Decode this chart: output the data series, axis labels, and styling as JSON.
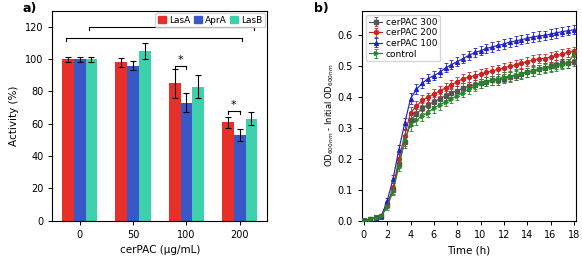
{
  "bar_categories": [
    0,
    50,
    100,
    200
  ],
  "bar_labels": [
    "LasA",
    "AprA",
    "LasB"
  ],
  "bar_colors": [
    "#e8302a",
    "#3958c8",
    "#3ecfac"
  ],
  "bar_data": {
    "LasA": [
      100,
      98,
      85,
      61
    ],
    "AprA": [
      100,
      96,
      73,
      53
    ],
    "LasB": [
      100,
      105,
      83,
      63
    ]
  },
  "bar_errors": {
    "LasA": [
      1.5,
      3,
      9,
      3.5
    ],
    "AprA": [
      1.5,
      3,
      6,
      3.5
    ],
    "LasB": [
      1.5,
      5,
      7,
      4
    ]
  },
  "bar_ylabel": "Activity (%)",
  "bar_xlabel": "cerPAC (μg/mL)",
  "bar_ylim": [
    0,
    130
  ],
  "bar_yticks": [
    0,
    20,
    40,
    60,
    80,
    100,
    120
  ],
  "growth_time": [
    0,
    0.5,
    1.0,
    1.5,
    2.0,
    2.5,
    3.0,
    3.5,
    4.0,
    4.5,
    5.0,
    5.5,
    6.0,
    6.5,
    7.0,
    7.5,
    8.0,
    8.5,
    9.0,
    9.5,
    10.0,
    10.5,
    11.0,
    11.5,
    12.0,
    12.5,
    13.0,
    13.5,
    14.0,
    14.5,
    15.0,
    15.5,
    16.0,
    16.5,
    17.0,
    17.5,
    18.0
  ],
  "growth_cerPAC300": [
    0.0,
    0.005,
    0.01,
    0.015,
    0.05,
    0.1,
    0.185,
    0.255,
    0.325,
    0.345,
    0.365,
    0.375,
    0.385,
    0.395,
    0.405,
    0.415,
    0.42,
    0.43,
    0.435,
    0.44,
    0.445,
    0.45,
    0.455,
    0.455,
    0.46,
    0.465,
    0.47,
    0.475,
    0.48,
    0.485,
    0.49,
    0.495,
    0.5,
    0.505,
    0.51,
    0.51,
    0.515
  ],
  "growth_cerPAC200": [
    0.0,
    0.005,
    0.01,
    0.015,
    0.055,
    0.105,
    0.2,
    0.275,
    0.35,
    0.37,
    0.39,
    0.4,
    0.41,
    0.42,
    0.43,
    0.44,
    0.45,
    0.46,
    0.465,
    0.47,
    0.475,
    0.48,
    0.485,
    0.49,
    0.495,
    0.5,
    0.505,
    0.51,
    0.515,
    0.52,
    0.525,
    0.525,
    0.53,
    0.535,
    0.54,
    0.545,
    0.548
  ],
  "growth_cerPAC100": [
    0.0,
    0.005,
    0.01,
    0.015,
    0.065,
    0.135,
    0.23,
    0.315,
    0.395,
    0.425,
    0.445,
    0.46,
    0.47,
    0.48,
    0.495,
    0.505,
    0.515,
    0.525,
    0.535,
    0.545,
    0.55,
    0.558,
    0.562,
    0.568,
    0.572,
    0.578,
    0.582,
    0.586,
    0.59,
    0.595,
    0.598,
    0.6,
    0.604,
    0.608,
    0.612,
    0.615,
    0.618
  ],
  "growth_control": [
    0.0,
    0.005,
    0.01,
    0.015,
    0.045,
    0.095,
    0.175,
    0.26,
    0.31,
    0.325,
    0.34,
    0.35,
    0.365,
    0.375,
    0.385,
    0.395,
    0.405,
    0.415,
    0.425,
    0.435,
    0.445,
    0.45,
    0.455,
    0.46,
    0.465,
    0.468,
    0.472,
    0.476,
    0.48,
    0.484,
    0.49,
    0.493,
    0.497,
    0.5,
    0.505,
    0.51,
    0.54
  ],
  "growth_err_hi": [
    0.008,
    0.008,
    0.008,
    0.008,
    0.01,
    0.012,
    0.015,
    0.018,
    0.018,
    0.016,
    0.016,
    0.015,
    0.015,
    0.015,
    0.015,
    0.015,
    0.015,
    0.015,
    0.015,
    0.015,
    0.015,
    0.015,
    0.015,
    0.015,
    0.015,
    0.015,
    0.015,
    0.015,
    0.015,
    0.015,
    0.015,
    0.015,
    0.015,
    0.015,
    0.015,
    0.015,
    0.015
  ],
  "growth_ylabel": "OD$_{600nm}$ - Initial OD$_{600nm}$",
  "growth_xlabel": "Time (h)",
  "growth_ylim": [
    0.0,
    0.68
  ],
  "growth_yticks": [
    0.0,
    0.1,
    0.2,
    0.3,
    0.4,
    0.5,
    0.6
  ],
  "growth_xticks": [
    0,
    2,
    4,
    6,
    8,
    10,
    12,
    14,
    16,
    18
  ],
  "growth_colors": [
    "#555555",
    "#cc2222",
    "#2222cc",
    "#228822"
  ],
  "growth_labels": [
    "cerPAC 300",
    "cerPAC 200",
    "cerPAC 100",
    "control"
  ],
  "growth_markers": [
    "s",
    "o",
    "^",
    ">"
  ],
  "panel_a_label": "a)",
  "panel_b_label": "b)"
}
